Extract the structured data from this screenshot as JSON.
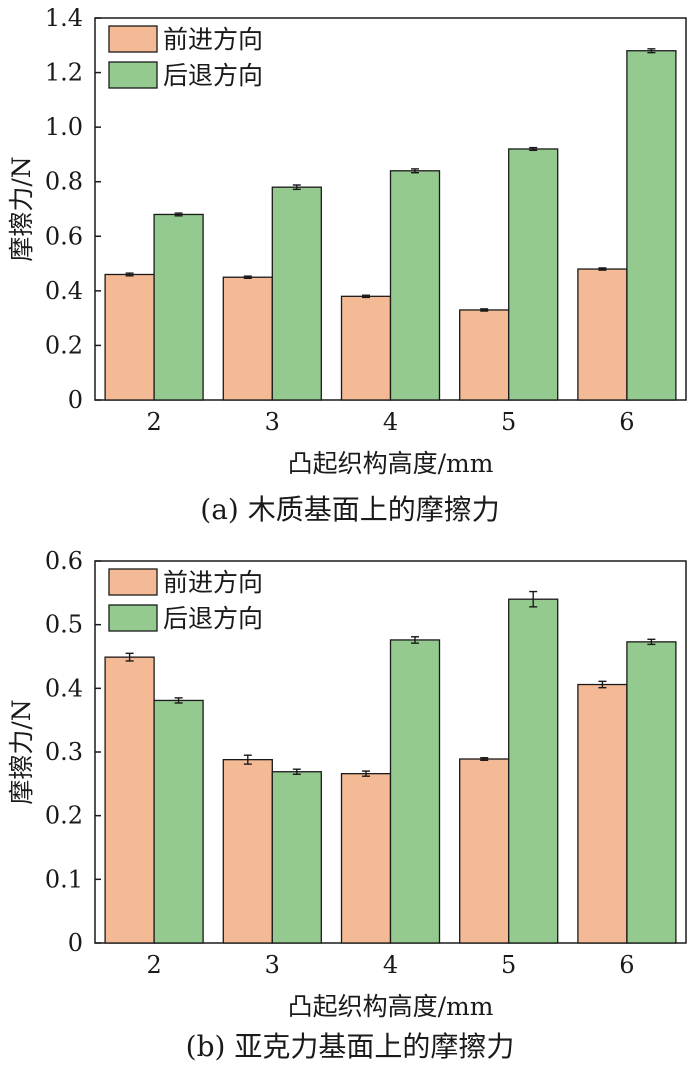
{
  "chart_data": [
    {
      "type": "bar",
      "caption": "(a)  木质基面上的摩擦力",
      "categories": [
        "2",
        "3",
        "4",
        "5",
        "6"
      ],
      "xlabel": "凸起织构高度/mm",
      "ylabel": "摩擦力/N",
      "ylim": [
        0,
        1.4
      ],
      "yticks": [
        "0",
        "0.2",
        "0.4",
        "0.6",
        "0.8",
        "1.0",
        "1.2",
        "1.4"
      ],
      "legend_position": "top-left",
      "grid": false,
      "series": [
        {
          "name": "前进方向",
          "color": "#f4b995",
          "values": [
            0.46,
            0.45,
            0.38,
            0.33,
            0.48
          ],
          "errors": [
            0.005,
            0.004,
            0.004,
            0.004,
            0.004
          ]
        },
        {
          "name": "后退方向",
          "color": "#94c98f",
          "values": [
            0.68,
            0.78,
            0.84,
            0.92,
            1.28
          ],
          "errors": [
            0.005,
            0.008,
            0.007,
            0.005,
            0.007
          ]
        }
      ]
    },
    {
      "type": "bar",
      "caption": "(b)  亚克力基面上的摩擦力",
      "categories": [
        "2",
        "3",
        "4",
        "5",
        "6"
      ],
      "xlabel": "凸起织构高度/mm",
      "ylabel": "摩擦力/N",
      "ylim": [
        0,
        0.6
      ],
      "yticks": [
        "0",
        "0.1",
        "0.2",
        "0.3",
        "0.4",
        "0.5",
        "0.6"
      ],
      "legend_position": "top-left",
      "grid": false,
      "series": [
        {
          "name": "前进方向",
          "color": "#f4b995",
          "values": [
            0.449,
            0.288,
            0.266,
            0.289,
            0.406
          ],
          "errors": [
            0.006,
            0.007,
            0.004,
            0.002,
            0.005
          ]
        },
        {
          "name": "后退方向",
          "color": "#94c98f",
          "values": [
            0.381,
            0.269,
            0.476,
            0.54,
            0.473
          ],
          "errors": [
            0.004,
            0.004,
            0.005,
            0.012,
            0.004
          ]
        }
      ]
    }
  ]
}
